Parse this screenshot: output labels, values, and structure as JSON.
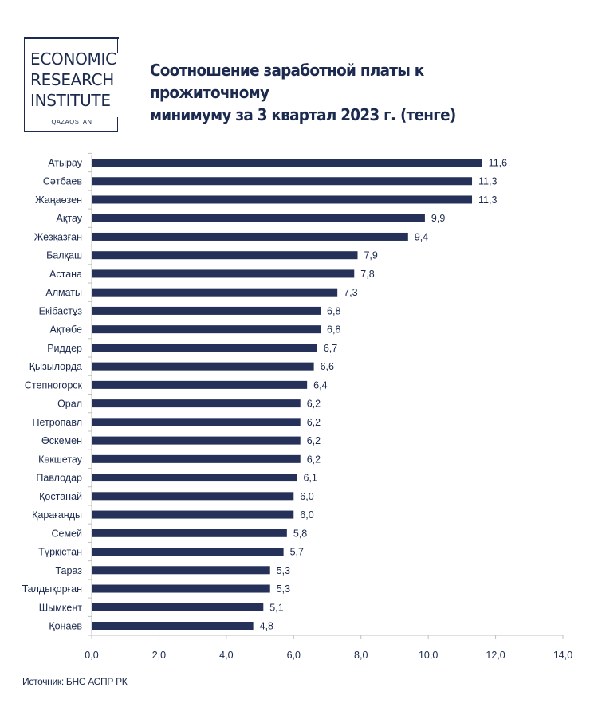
{
  "logo": {
    "line1": "ECONOMIC",
    "line2": "RESEARCH",
    "line3": "INSTITUTE",
    "sub": "QAZAQSTAN"
  },
  "title_line1": "Соотношение заработной платы к прожиточному",
  "title_line2": "минимуму за 3 квартал 2023 г. (тенге)",
  "source": "Источник: БНС АСПР РК",
  "colors": {
    "bar": "#253158",
    "text": "#1b2a4e",
    "axis": "#bfbfbf"
  },
  "chart_data": {
    "type": "bar",
    "orientation": "horizontal",
    "categories": [
      "Атырау",
      "Сәтбаев",
      "Жаңаөзен",
      "Ақтау",
      "Жезқазған",
      "Балқаш",
      "Астана",
      "Алматы",
      "Екібастұз",
      "Ақтөбе",
      "Риддер",
      "Қызылорда",
      "Степногорск",
      "Орал",
      "Петропавл",
      "Өскемен",
      "Көкшетау",
      "Павлодар",
      "Қостанай",
      "Қарағанды",
      "Семей",
      "Түркістан",
      "Тараз",
      "Талдықорған",
      "Шымкент",
      "Қонаев"
    ],
    "values": [
      11.6,
      11.3,
      11.3,
      9.9,
      9.4,
      7.9,
      7.8,
      7.3,
      6.8,
      6.8,
      6.7,
      6.6,
      6.4,
      6.2,
      6.2,
      6.2,
      6.2,
      6.1,
      6.0,
      6.0,
      5.8,
      5.7,
      5.3,
      5.3,
      5.1,
      4.8
    ],
    "value_labels": [
      "11,6",
      "11,3",
      "11,3",
      "9,9",
      "9,4",
      "7,9",
      "7,8",
      "7,3",
      "6,8",
      "6,8",
      "6,7",
      "6,6",
      "6,4",
      "6,2",
      "6,2",
      "6,2",
      "6,2",
      "6,1",
      "6,0",
      "6,0",
      "5,8",
      "5,7",
      "5,3",
      "5,3",
      "5,1",
      "4,8"
    ],
    "xlim": [
      0,
      14
    ],
    "xticks": [
      0,
      2,
      4,
      6,
      8,
      10,
      12,
      14
    ],
    "xtick_labels": [
      "0,0",
      "2,0",
      "4,0",
      "6,0",
      "8,0",
      "10,0",
      "12,0",
      "14,0"
    ],
    "grid": false,
    "legend": "none"
  }
}
